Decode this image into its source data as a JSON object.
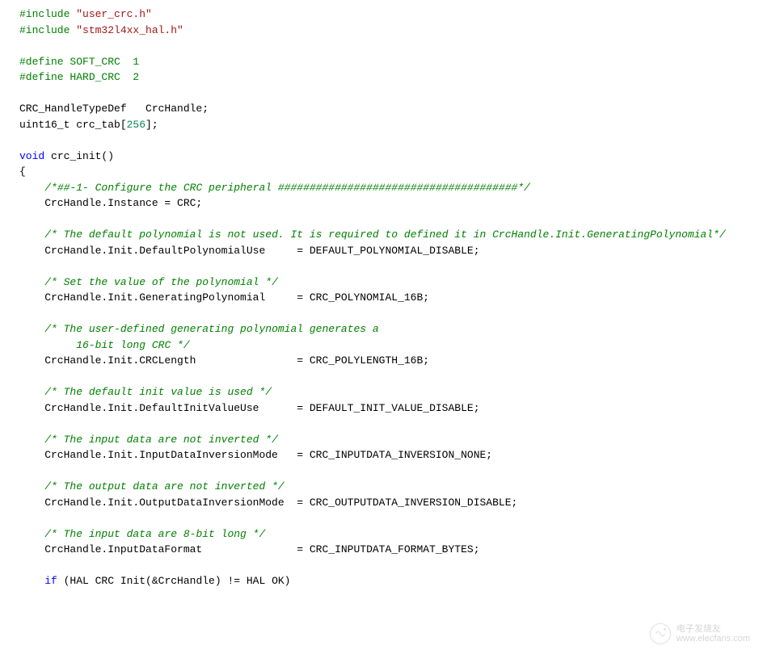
{
  "colors": {
    "preprocessor": "#008000",
    "keyword": "#0000ff",
    "string": "#a31515",
    "number": "#098658",
    "comment": "#008000",
    "text": "#000000",
    "background": "#ffffff"
  },
  "code": {
    "lines": [
      {
        "parts": [
          {
            "cls": "preprocessor",
            "text": "#include "
          },
          {
            "cls": "string",
            "text": "\"user_crc.h\""
          }
        ]
      },
      {
        "parts": [
          {
            "cls": "preprocessor",
            "text": "#include "
          },
          {
            "cls": "string",
            "text": "\"stm32l4xx_hal.h\""
          }
        ]
      },
      {
        "parts": []
      },
      {
        "parts": [
          {
            "cls": "preprocessor",
            "text": "#define SOFT_CRC  1"
          }
        ]
      },
      {
        "parts": [
          {
            "cls": "preprocessor",
            "text": "#define HARD_CRC  2"
          }
        ]
      },
      {
        "parts": []
      },
      {
        "parts": [
          {
            "cls": "",
            "text": "CRC_HandleTypeDef   CrcHandle;"
          }
        ]
      },
      {
        "parts": [
          {
            "cls": "",
            "text": "uint16_t crc_tab["
          },
          {
            "cls": "number",
            "text": "256"
          },
          {
            "cls": "",
            "text": "];"
          }
        ]
      },
      {
        "parts": []
      },
      {
        "parts": [
          {
            "cls": "keyword",
            "text": "void"
          },
          {
            "cls": "",
            "text": " crc_init()"
          }
        ]
      },
      {
        "parts": [
          {
            "cls": "",
            "text": "{"
          }
        ]
      },
      {
        "parts": [
          {
            "cls": "",
            "text": "    "
          },
          {
            "cls": "comment",
            "text": "/*##-1- Configure the CRC peripheral ######################################*/"
          }
        ]
      },
      {
        "parts": [
          {
            "cls": "",
            "text": "    CrcHandle.Instance = CRC;"
          }
        ]
      },
      {
        "parts": []
      },
      {
        "parts": [
          {
            "cls": "",
            "text": "    "
          },
          {
            "cls": "comment",
            "text": "/* The default polynomial is not used. It is required to defined it in CrcHandle.Init.GeneratingPolynomial*/"
          }
        ]
      },
      {
        "parts": [
          {
            "cls": "",
            "text": "    CrcHandle.Init.DefaultPolynomialUse     = DEFAULT_POLYNOMIAL_DISABLE;"
          }
        ]
      },
      {
        "parts": []
      },
      {
        "parts": [
          {
            "cls": "",
            "text": "    "
          },
          {
            "cls": "comment",
            "text": "/* Set the value of the polynomial */"
          }
        ]
      },
      {
        "parts": [
          {
            "cls": "",
            "text": "    CrcHandle.Init.GeneratingPolynomial     = CRC_POLYNOMIAL_16B;"
          }
        ]
      },
      {
        "parts": []
      },
      {
        "parts": [
          {
            "cls": "",
            "text": "    "
          },
          {
            "cls": "comment",
            "text": "/* The user-defined generating polynomial generates a"
          }
        ]
      },
      {
        "parts": [
          {
            "cls": "",
            "text": "    "
          },
          {
            "cls": "comment",
            "text": "     16-bit long CRC */"
          }
        ]
      },
      {
        "parts": [
          {
            "cls": "",
            "text": "    CrcHandle.Init.CRCLength                = CRC_POLYLENGTH_16B;"
          }
        ]
      },
      {
        "parts": []
      },
      {
        "parts": [
          {
            "cls": "",
            "text": "    "
          },
          {
            "cls": "comment",
            "text": "/* The default init value is used */"
          }
        ]
      },
      {
        "parts": [
          {
            "cls": "",
            "text": "    CrcHandle.Init.DefaultInitValueUse      = DEFAULT_INIT_VALUE_DISABLE;"
          }
        ]
      },
      {
        "parts": []
      },
      {
        "parts": [
          {
            "cls": "",
            "text": "    "
          },
          {
            "cls": "comment",
            "text": "/* The input data are not inverted */"
          }
        ]
      },
      {
        "parts": [
          {
            "cls": "",
            "text": "    CrcHandle.Init.InputDataInversionMode   = CRC_INPUTDATA_INVERSION_NONE;"
          }
        ]
      },
      {
        "parts": []
      },
      {
        "parts": [
          {
            "cls": "",
            "text": "    "
          },
          {
            "cls": "comment",
            "text": "/* The output data are not inverted */"
          }
        ]
      },
      {
        "parts": [
          {
            "cls": "",
            "text": "    CrcHandle.Init.OutputDataInversionMode  = CRC_OUTPUTDATA_INVERSION_DISABLE;"
          }
        ]
      },
      {
        "parts": []
      },
      {
        "parts": [
          {
            "cls": "",
            "text": "    "
          },
          {
            "cls": "comment",
            "text": "/* The input data are 8-bit long */"
          }
        ]
      },
      {
        "parts": [
          {
            "cls": "",
            "text": "    CrcHandle.InputDataFormat               = CRC_INPUTDATA_FORMAT_BYTES;"
          }
        ]
      },
      {
        "parts": []
      },
      {
        "parts": [
          {
            "cls": "",
            "text": "    "
          },
          {
            "cls": "keyword",
            "text": "if"
          },
          {
            "cls": "",
            "text": " (HAL CRC Init(&CrcHandle) != HAL OK)"
          }
        ]
      }
    ]
  },
  "watermark": {
    "title": "电子发烧友",
    "url": "www.elecfans.com"
  }
}
